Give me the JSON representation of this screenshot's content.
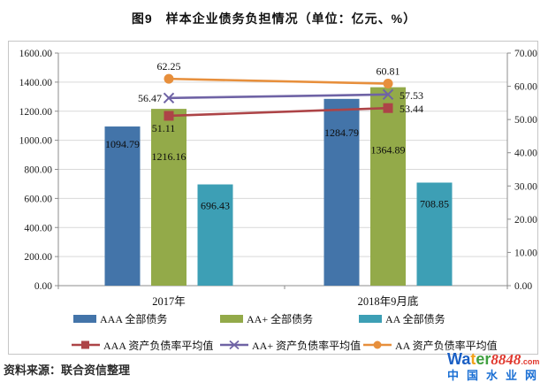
{
  "title": "图9　样本企业债务负担情况（单位：亿元、%）",
  "source": "资料来源：联合资信整理",
  "footer_logo": {
    "letters": [
      {
        "char": "W",
        "color": "#1a5fc4"
      },
      {
        "char": "a",
        "color": "#1a5fc4"
      },
      {
        "char": "t",
        "color": "#f2a21a"
      },
      {
        "char": "e",
        "color": "#3fa03f"
      },
      {
        "char": "r",
        "color": "#3fa03f"
      }
    ],
    "number": "8848",
    "number_color": "#e0362c",
    "dotcom": ".com",
    "dotcom_color": "#e0362c",
    "tagline": "中国水业网",
    "tagline_color": "#1a6fd4"
  },
  "chart_data": {
    "type": "bar",
    "subtype": "grouped bars + lines on secondary axis",
    "categories": [
      "2017年",
      "2018年9月底"
    ],
    "bar_series": [
      {
        "name": "AAA 全部债务",
        "color": "#4374a9",
        "values": [
          1094.79,
          1284.79
        ],
        "label_dy": [
          24,
          42
        ]
      },
      {
        "name": "AA+ 全部债务",
        "color": "#93aa49",
        "values": [
          1216.16,
          1364.89
        ],
        "label_dy": [
          58,
          75
        ]
      },
      {
        "name": "AA 全部债务",
        "color": "#3d9fb5",
        "values": [
          696.43,
          708.85
        ],
        "label_dy": [
          28,
          28
        ]
      }
    ],
    "line_series": [
      {
        "name": "AAA 资产负债率平均值",
        "color": "#ad4447",
        "marker": "square",
        "values": [
          51.11,
          53.44
        ],
        "label_pos": [
          "below",
          "right"
        ]
      },
      {
        "name": "AA+ 资产负债率平均值",
        "color": "#6f63a5",
        "marker": "x",
        "values": [
          56.47,
          57.53
        ],
        "label_pos": [
          "left",
          "right"
        ]
      },
      {
        "name": "AA 资产负债率平均值",
        "color": "#e78f3c",
        "marker": "circle",
        "values": [
          62.25,
          60.81
        ],
        "label_pos": [
          "above",
          "above"
        ]
      }
    ],
    "left_axis": {
      "min": 0,
      "max": 1600,
      "step": 200,
      "label": "亿元"
    },
    "right_axis": {
      "min": 0,
      "max": 70,
      "step": 10,
      "label": "%"
    },
    "grid": true,
    "legend_position": "bottom, two rows (bars row, lines row)",
    "grid_color": "#d9d9d9",
    "axis_color": "#8c8c8c"
  }
}
